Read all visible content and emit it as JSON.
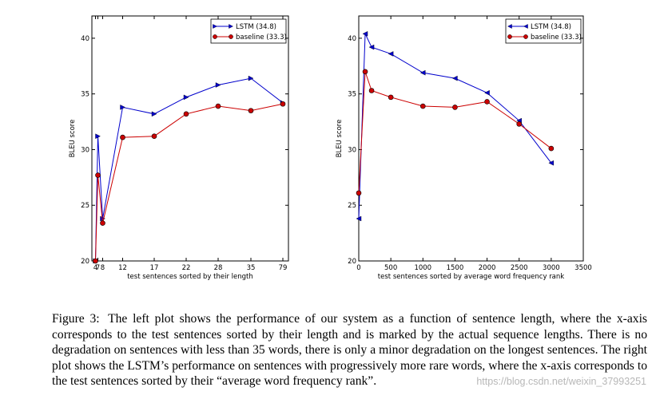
{
  "chart_data": [
    {
      "type": "line",
      "xlabel": "test sentences sorted by their length",
      "ylabel": "BLEU score",
      "x_scale": "categorical",
      "categories": [
        "4",
        "7",
        "8",
        "12",
        "17",
        "22",
        "28",
        "35",
        "79"
      ],
      "ylim": [
        20,
        42
      ],
      "yticks": [
        "20",
        "25",
        "30",
        "35",
        "40"
      ],
      "legend_position": "top-right",
      "series": [
        {
          "name": "LSTM  (34.8)",
          "color": "#0000cc",
          "marker": "triangle-right",
          "values": [
            20,
            31.2,
            23.8,
            33.8,
            33.2,
            34.7,
            35.8,
            36.4,
            34.2
          ]
        },
        {
          "name": "baseline (33.3)",
          "color": "#cc0000",
          "marker": "circle",
          "values": [
            20,
            27.7,
            23.4,
            31.1,
            31.2,
            33.2,
            33.9,
            33.5,
            34.1
          ]
        }
      ]
    },
    {
      "type": "line",
      "xlabel": "test sentences sorted by average word frequency rank",
      "ylabel": "BLEU score",
      "xlim": [
        0,
        3500
      ],
      "xticks": [
        "0",
        "500",
        "1000",
        "1500",
        "2000",
        "2500",
        "3000",
        "3500"
      ],
      "ylim": [
        20,
        42
      ],
      "yticks": [
        "20",
        "25",
        "30",
        "35",
        "40"
      ],
      "legend_position": "top-right",
      "series": [
        {
          "name": "LSTM  (34.8)",
          "color": "#0000cc",
          "marker": "triangle-left",
          "x": [
            0,
            100,
            200,
            500,
            1000,
            1500,
            2000,
            2500,
            3000
          ],
          "values": [
            23.8,
            40.4,
            39.2,
            38.6,
            36.9,
            36.4,
            35.1,
            32.6,
            28.8
          ]
        },
        {
          "name": "baseline (33.3)",
          "color": "#cc0000",
          "marker": "circle",
          "x": [
            0,
            100,
            200,
            500,
            1000,
            1500,
            2000,
            2500,
            3000
          ],
          "values": [
            26.1,
            37.0,
            35.3,
            34.7,
            33.9,
            33.8,
            34.3,
            32.3,
            30.1
          ]
        }
      ]
    }
  ],
  "caption": {
    "lead": "Figure 3:",
    "text": "The left plot shows the performance of our system as a function of sentence length, where the x-axis corresponds to the test sentences sorted by their length and is marked by the actual sequence lengths. There is no degradation on sentences with less than 35 words, there is only a minor degradation on the longest sentences. The right plot shows the LSTM’s performance on sentences with progressively more rare words, where the x-axis corresponds to the test sentences sorted by their “average word frequency rank”."
  },
  "watermark": "https://blog.csdn.net/weixin_37993251"
}
